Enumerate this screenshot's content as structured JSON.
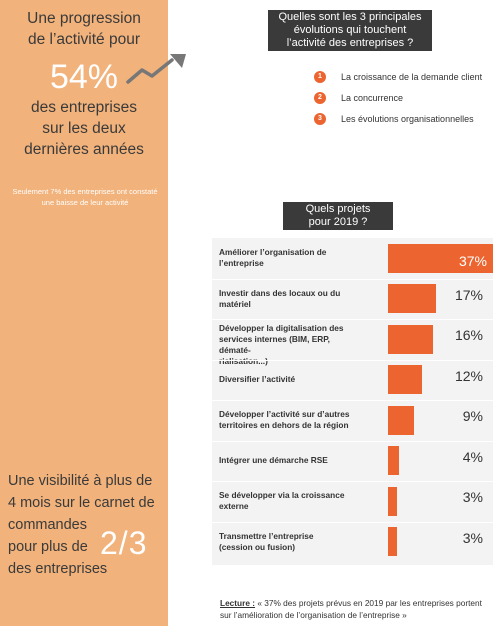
{
  "left_panel": {
    "progression_line1": "Une progression",
    "progression_line2": "de l’activité pour",
    "big_percent": "54%",
    "progression_line3": "des entreprises",
    "progression_line4": "sur les deux",
    "progression_line5": "dernières années",
    "note": "Seulement 7% des entreprises ont constaté une baisse de leur activité",
    "visibility_line1": "Une visibilité à plus de",
    "visibility_line2": "4 mois sur le carnet de",
    "visibility_line3": "commandes",
    "visibility_line4": "pour plus de",
    "visibility_line5": "des entreprises",
    "ratio": "2/3",
    "panel_color": "#f1b27b"
  },
  "evolutions": {
    "title_line1": "Quelles sont les 3 principales",
    "title_line2": "évolutions qui touchent",
    "title_line3": "l’activité des entreprises ?",
    "items": [
      {
        "num": "1",
        "label": "La croissance de la demande client"
      },
      {
        "num": "2",
        "label": "La concurrence"
      },
      {
        "num": "3",
        "label": "Les évolutions organisationnelles"
      }
    ]
  },
  "projects": {
    "title_line1": "Quels projets",
    "title_line2": "pour 2019 ?"
  },
  "chart_data": {
    "type": "bar",
    "orientation": "horizontal",
    "title": "Quels projets pour 2019 ?",
    "categories": [
      "Améliorer l’organisation de l’entreprise",
      "Investir dans des locaux ou du matériel",
      "Développer la digitalisation des services internes (BIM, ERP, dématé-rialisation...)",
      "Diversifier l’activité",
      "Développer l’activité sur d’autres territoires en dehors de la région",
      "Intégrer une démarche RSE",
      "Se développer via la croissance externe",
      "Transmettre l’entreprise (cession ou fusion)"
    ],
    "label_lines": [
      [
        "Améliorer l’organisation de",
        "l’entreprise"
      ],
      [
        "Investir dans des locaux ou du",
        "matériel"
      ],
      [
        "Développer la digitalisation des",
        "services internes (BIM, ERP, dématé-",
        "rialisation...)"
      ],
      [
        "Diversifier l’activité"
      ],
      [
        "Développer l’activité sur d’autres",
        "territoires en dehors de la région"
      ],
      [
        "Intégrer une démarche RSE"
      ],
      [
        "Se développer via la croissance",
        "externe"
      ],
      [
        "Transmettre l’entreprise",
        "(cession ou fusion)"
      ]
    ],
    "values": [
      37,
      17,
      16,
      12,
      9,
      4,
      3,
      3
    ],
    "value_labels": [
      "37%",
      "17%",
      "16%",
      "12%",
      "9%",
      "4%",
      "3%",
      "3%"
    ],
    "unit": "%",
    "bar_color": "#ec6530"
  },
  "lecture": {
    "key": "Lecture :",
    "text": " « 37% des projets prévus en 2019 par les entreprises portent sur l’amélioration de l’organisation de l’entreprise »"
  }
}
